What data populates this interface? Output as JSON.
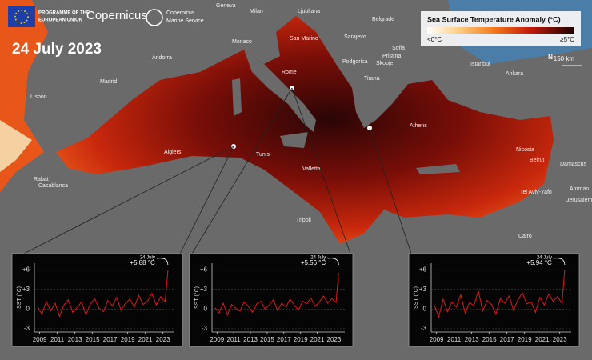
{
  "header": {
    "eu": [
      "PROGRAMME OF THE",
      "EUROPEAN UNION"
    ],
    "copernicus": "Copernicus",
    "marine": [
      "Copernicus",
      "Marine Service"
    ]
  },
  "date": "24 July 2023",
  "legend": {
    "title": "Sea Surface Temperature Anomaly (°C)",
    "low": "<0°C",
    "high": "≥5°C"
  },
  "scale": "150 km",
  "north": "N",
  "map": {
    "cities": [
      "Geneva",
      "Milan",
      "Ljubljana",
      "Belgrade",
      "Monaco",
      "San Marino",
      "Sarajevo",
      "Sofia",
      "Istanbul",
      "Ankara",
      "Andorra",
      "Rome",
      "Tirana",
      "Pristina",
      "Podgorica",
      "Skopje",
      "Madrid",
      "Lisbon",
      "Algiers",
      "Tunis",
      "Valletta",
      "Athens",
      "Nicosia",
      "Beirut",
      "Damascus",
      "Rabat",
      "Casablanca",
      "Tripoli",
      "Tel Aviv-Yafo",
      "Amman",
      "Jerusalem",
      "Cairo"
    ]
  },
  "chart_data": [
    {
      "type": "line",
      "y_label": "SST (°C)",
      "annotations": [
        "24 July",
        "+5.88 °C"
      ],
      "xlim": [
        2008.4,
        2024.3
      ],
      "xticks": [
        2009,
        2011,
        2013,
        2015,
        2017,
        2019,
        2021,
        2023
      ],
      "ylim": [
        -3.5,
        7
      ],
      "yticks": [
        {
          "value": 6,
          "label": "+6"
        },
        {
          "value": 3,
          "label": "+3"
        },
        0,
        -3
      ],
      "x": [
        2008.75,
        2009.25,
        2009.75,
        2010.25,
        2010.75,
        2011.25,
        2011.75,
        2012.25,
        2012.75,
        2013.25,
        2013.75,
        2014.25,
        2014.75,
        2015.25,
        2015.75,
        2016.25,
        2016.75,
        2017.25,
        2017.75,
        2018.25,
        2018.75,
        2019.25,
        2019.75,
        2020.25,
        2020.75,
        2021.25,
        2021.75,
        2022.25,
        2022.75,
        2023.25,
        2023.56
      ],
      "series": [
        {
          "color": "#e01818",
          "values": [
            0.4,
            -0.8,
            1.2,
            -0.3,
            0.9,
            -1.1,
            0.6,
            1.4,
            -0.5,
            0.2,
            1.1,
            -0.9,
            0.8,
            1.6,
            0.1,
            -0.4,
            1.3,
            0.5,
            1.8,
            -0.2,
            0.9,
            1.5,
            0.3,
            2.1,
            0.7,
            1.2,
            2.4,
            0.6,
            1.9,
            1.1,
            5.88
          ]
        }
      ]
    },
    {
      "type": "line",
      "y_label": "SST (°C)",
      "annotations": [
        "24 July",
        "+5.56 °C"
      ],
      "xlim": [
        2008.4,
        2024.3
      ],
      "xticks": [
        2009,
        2011,
        2013,
        2015,
        2017,
        2019,
        2021,
        2023
      ],
      "ylim": [
        -3.5,
        7
      ],
      "yticks": [
        {
          "value": 6,
          "label": "+6"
        },
        {
          "value": 3,
          "label": "+3"
        },
        0,
        -3
      ],
      "x": [
        2008.75,
        2009.25,
        2009.75,
        2010.25,
        2010.75,
        2011.25,
        2011.75,
        2012.25,
        2012.75,
        2013.25,
        2013.75,
        2014.25,
        2014.75,
        2015.25,
        2015.75,
        2016.25,
        2016.75,
        2017.25,
        2017.75,
        2018.25,
        2018.75,
        2019.25,
        2019.75,
        2020.25,
        2020.75,
        2021.25,
        2021.75,
        2022.25,
        2022.75,
        2023.25,
        2023.56
      ],
      "series": [
        {
          "color": "#e01818",
          "values": [
            0.2,
            -0.6,
            0.9,
            -0.9,
            0.7,
            0.1,
            -0.3,
            1.1,
            0.4,
            -0.5,
            0.8,
            1.2,
            0.0,
            0.6,
            1.4,
            -0.2,
            0.9,
            0.3,
            1.5,
            0.6,
            -0.1,
            1.2,
            0.8,
            1.7,
            0.4,
            1.1,
            2.0,
            0.9,
            1.6,
            1.0,
            5.56
          ]
        }
      ]
    },
    {
      "type": "line",
      "y_label": "SST (°C)",
      "annotations": [
        "24 July",
        "+5.94 °C"
      ],
      "xlim": [
        2008.4,
        2024.3
      ],
      "xticks": [
        2009,
        2011,
        2013,
        2015,
        2017,
        2019,
        2021,
        2023
      ],
      "ylim": [
        -3.5,
        7
      ],
      "yticks": [
        {
          "value": 6,
          "label": "+6"
        },
        {
          "value": 3,
          "label": "+3"
        },
        0,
        -3
      ],
      "x": [
        2008.75,
        2009.25,
        2009.75,
        2010.25,
        2010.75,
        2011.25,
        2011.75,
        2012.25,
        2012.75,
        2013.25,
        2013.75,
        2014.25,
        2014.75,
        2015.25,
        2015.75,
        2016.25,
        2016.75,
        2017.25,
        2017.75,
        2018.25,
        2018.75,
        2019.25,
        2019.75,
        2020.25,
        2020.75,
        2021.25,
        2021.75,
        2022.25,
        2022.75,
        2023.25,
        2023.56
      ],
      "series": [
        {
          "color": "#e01818",
          "values": [
            0.6,
            -1.2,
            1.5,
            -0.4,
            1.1,
            0.3,
            2.2,
            -0.6,
            1.0,
            0.5,
            2.8,
            -0.3,
            1.3,
            0.7,
            -0.8,
            1.6,
            0.9,
            2.0,
            -0.2,
            1.4,
            2.5,
            0.8,
            1.1,
            -0.5,
            1.8,
            0.6,
            2.3,
            1.2,
            1.9,
            0.9,
            5.94
          ]
        }
      ]
    }
  ]
}
